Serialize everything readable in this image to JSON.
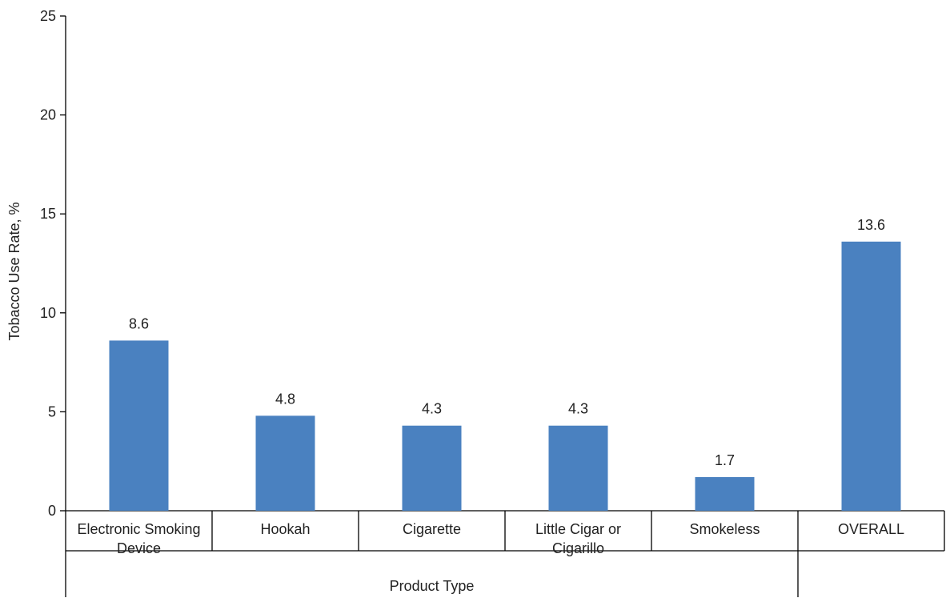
{
  "chart_data": {
    "type": "bar",
    "categories": [
      [
        "Electronic Smoking",
        "Device"
      ],
      [
        "Hookah"
      ],
      [
        "Cigarette"
      ],
      [
        "Little Cigar or",
        "Cigarillo"
      ],
      [
        "Smokeless"
      ],
      [
        "OVERALL"
      ]
    ],
    "values": [
      8.6,
      4.8,
      4.3,
      4.3,
      1.7,
      13.6
    ],
    "data_labels": [
      "8.6",
      "4.8",
      "4.3",
      "4.3",
      "1.7",
      "13.6"
    ],
    "title": "",
    "xlabel": "Product Type",
    "ylabel": "Tobacco Use Rate, %",
    "ylim": [
      0,
      25
    ],
    "yticks": [
      0,
      5,
      10,
      15,
      20,
      25
    ],
    "grid": false,
    "legend": "none",
    "bar_color": "#4a81c0",
    "axis_color": "#000000"
  }
}
